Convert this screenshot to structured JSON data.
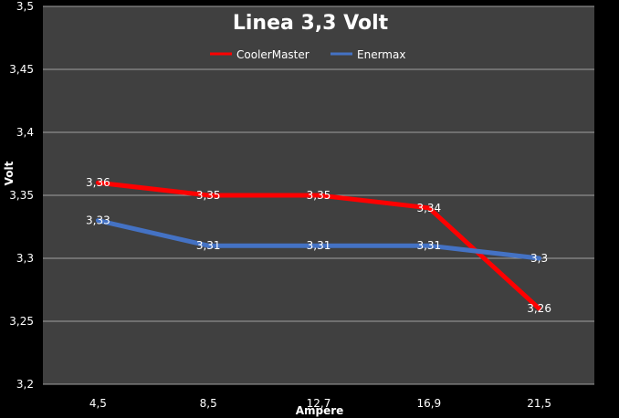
{
  "chart_data": {
    "type": "line",
    "title": "Linea 3,3 Volt",
    "xlabel": "Ampere",
    "ylabel": "Volt",
    "categories": [
      "4,5",
      "8,5",
      "12,7",
      "16,9",
      "21,5"
    ],
    "ylim": [
      3.2,
      3.5
    ],
    "yticks": [
      3.2,
      3.25,
      3.3,
      3.35,
      3.4,
      3.45,
      3.5
    ],
    "ytick_labels": [
      "3,2",
      "3,25",
      "3,3",
      "3,35",
      "3,4",
      "3,45",
      "3,5"
    ],
    "grid": true,
    "legend_position": "top-center",
    "series": [
      {
        "name": "CoolerMaster",
        "color": "#ff0000",
        "values": [
          3.36,
          3.35,
          3.35,
          3.34,
          3.26
        ],
        "labels": [
          "3,36",
          "3,35",
          "3,35",
          "3,34",
          "3,26"
        ]
      },
      {
        "name": "Enermax",
        "color": "#4472c4",
        "values": [
          3.33,
          3.31,
          3.31,
          3.31,
          3.3
        ],
        "labels": [
          "3,33",
          "3,31",
          "3,31",
          "3,31",
          "3,3"
        ]
      }
    ],
    "plot_background": "#404040",
    "background": "#000000",
    "gridline_color": "#a0a0a0"
  }
}
